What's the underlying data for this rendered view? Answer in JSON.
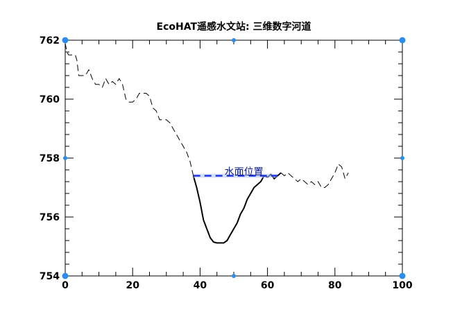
{
  "chart_data": {
    "type": "line",
    "title": "EcoHAT遥感水文站: 三维数字河道",
    "xlim": [
      0,
      100
    ],
    "ylim": [
      754,
      762
    ],
    "x_ticks": [
      "0",
      "20",
      "40",
      "60",
      "80",
      "100"
    ],
    "y_ticks": [
      "754",
      "756",
      "758",
      "760",
      "762"
    ],
    "grid": false,
    "annotation": "水面位置",
    "water_level": {
      "y": 757.4,
      "x_start": 38,
      "x_end": 63,
      "color": "#1a35e0"
    },
    "handle_color": "#2a8cf0",
    "series": [
      {
        "style": "dashed",
        "color": "#000000",
        "x": [
          0,
          0.5,
          1,
          2,
          3,
          3.5,
          4,
          5,
          6,
          7,
          8,
          9,
          10,
          11,
          12,
          13,
          14,
          15,
          16,
          17,
          18,
          19,
          20,
          21,
          22,
          23,
          24,
          25,
          26,
          27,
          28,
          29,
          30,
          31,
          32,
          33,
          34,
          35,
          36,
          37,
          38
        ],
        "y": [
          761.9,
          761.6,
          761.5,
          761.5,
          761.5,
          761.3,
          760.8,
          760.8,
          760.8,
          761.0,
          760.7,
          760.5,
          760.5,
          760.4,
          760.7,
          760.5,
          760.6,
          760.5,
          760.7,
          760.5,
          760.0,
          759.9,
          759.9,
          760.0,
          760.2,
          760.2,
          760.2,
          760.1,
          759.7,
          759.6,
          759.3,
          759.3,
          759.3,
          759.2,
          759.0,
          758.8,
          758.6,
          758.4,
          758.2,
          757.9,
          757.4
        ]
      },
      {
        "style": "solid",
        "color": "#000000",
        "x": [
          38,
          39,
          40,
          41,
          42,
          43,
          44,
          45,
          46,
          47,
          48,
          49,
          50,
          51,
          52,
          53,
          54,
          55,
          56,
          57,
          58,
          59,
          60,
          61,
          62,
          63,
          64
        ],
        "y": [
          757.4,
          757.0,
          756.5,
          755.9,
          755.6,
          755.3,
          755.15,
          755.12,
          755.12,
          755.12,
          755.2,
          755.4,
          755.6,
          755.8,
          756.1,
          756.3,
          756.6,
          756.8,
          757.0,
          757.1,
          757.2,
          757.4,
          757.35,
          757.45,
          757.3,
          757.4,
          757.5
        ]
      },
      {
        "style": "dashed",
        "color": "#000000",
        "x": [
          64,
          65,
          66,
          67,
          68,
          69,
          70,
          71,
          72,
          73,
          74,
          75,
          76,
          77,
          78,
          79,
          80,
          81,
          82,
          83,
          84
        ],
        "y": [
          757.5,
          757.4,
          757.5,
          757.4,
          757.3,
          757.2,
          757.3,
          757.2,
          757.1,
          757.2,
          757.1,
          757.2,
          757.0,
          757.0,
          757.1,
          757.3,
          757.5,
          757.8,
          757.7,
          757.3,
          757.5
        ]
      }
    ]
  }
}
